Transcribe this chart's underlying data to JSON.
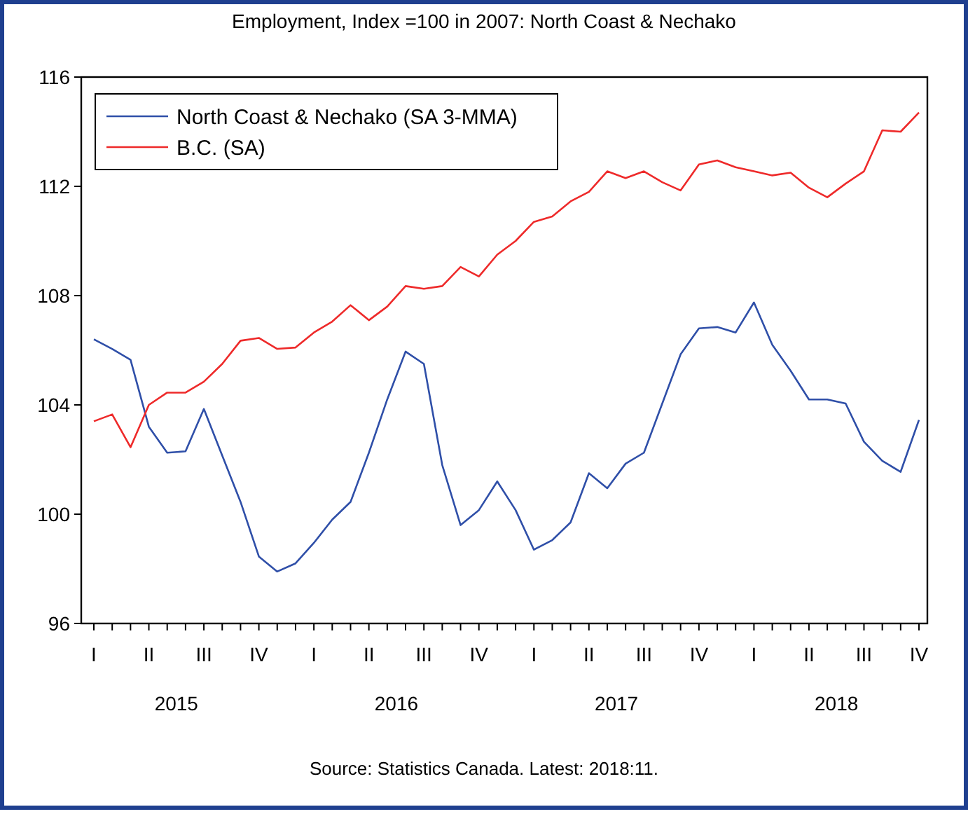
{
  "chart_data": {
    "type": "line",
    "title": "Employment, Index =100 in 2007: North Coast & Nechako",
    "categories": [
      "I",
      null,
      null,
      "II",
      null,
      null,
      "III",
      null,
      null,
      "IV",
      null,
      null,
      "I",
      null,
      null,
      "II",
      null,
      null,
      "III",
      null,
      null,
      "IV",
      null,
      null,
      "I",
      null,
      null,
      "II",
      null,
      null,
      "III",
      null,
      null,
      "IV",
      null,
      null,
      "I",
      null,
      null,
      "II",
      null,
      null,
      "III",
      null,
      null,
      "IV"
    ],
    "series": [
      {
        "name": "North Coast & Nechako (SA 3-MMA)",
        "color": "#2f4fa8",
        "values": [
          106.4,
          106.05,
          105.65,
          103.2,
          102.25,
          102.3,
          103.85,
          102.15,
          100.45,
          98.45,
          97.9,
          98.2,
          98.95,
          99.8,
          100.45,
          102.25,
          104.2,
          105.95,
          105.5,
          101.8,
          99.6,
          100.15,
          101.2,
          100.15,
          98.7,
          99.05,
          99.7,
          101.5,
          100.95,
          101.85,
          102.25,
          104.05,
          105.85,
          106.8,
          106.85,
          106.65,
          107.75,
          106.2,
          105.25,
          104.2,
          104.2,
          104.05,
          102.65,
          101.95,
          101.55,
          103.45
        ]
      },
      {
        "name": "B.C. (SA)",
        "color": "#ee2a2a",
        "values": [
          103.4,
          103.65,
          102.45,
          104.0,
          104.45,
          104.45,
          104.85,
          105.5,
          106.35,
          106.45,
          106.05,
          106.1,
          106.65,
          107.05,
          107.65,
          107.1,
          107.6,
          108.35,
          108.25,
          108.35,
          109.05,
          108.7,
          109.5,
          110.0,
          110.7,
          110.9,
          111.45,
          111.8,
          112.55,
          112.3,
          112.55,
          112.15,
          111.85,
          112.8,
          112.95,
          112.7,
          112.55,
          112.4,
          112.5,
          111.95,
          111.6,
          112.1,
          112.55,
          114.05,
          114.0,
          114.7
        ]
      }
    ],
    "ylim": [
      96,
      116
    ],
    "yticks": [
      96,
      100,
      104,
      108,
      112,
      116
    ],
    "annotations": [
      "2015",
      "2016",
      "2017",
      "2018",
      "Source: Statistics Canada. Latest: 2018:11."
    ],
    "legend": "top left",
    "grid": false,
    "marker": "none",
    "line_style": "solid"
  }
}
